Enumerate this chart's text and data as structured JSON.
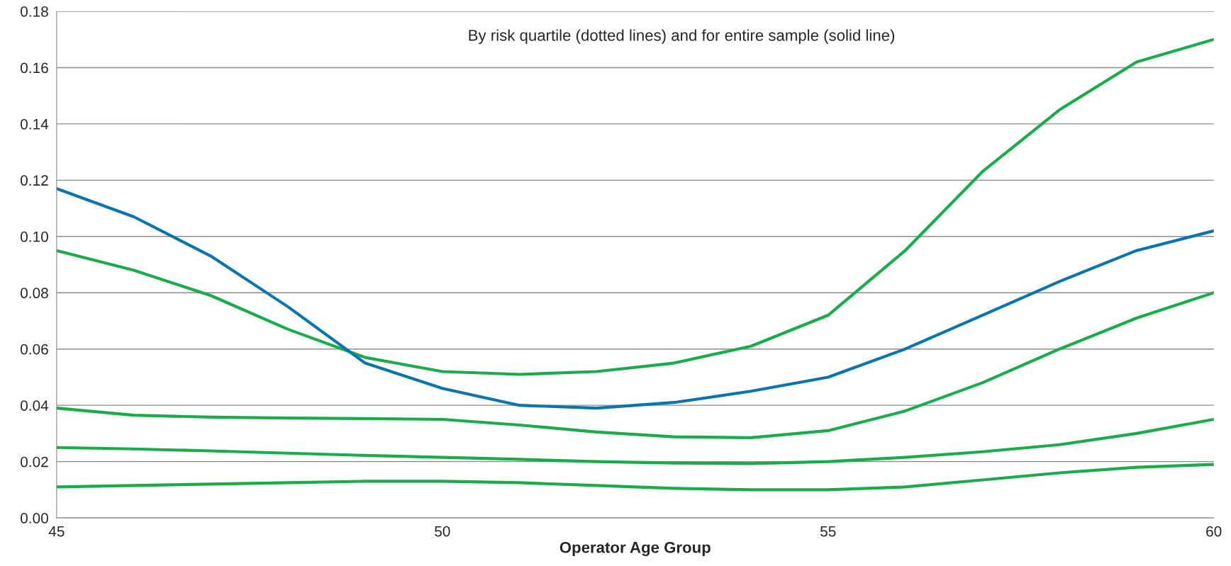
{
  "chart_data": {
    "type": "line",
    "xlabel": "Operator Age Group",
    "annotations": [
      "By risk quartile (dotted lines) and for entire sample (solid line)"
    ],
    "x": [
      45,
      46,
      47,
      48,
      49,
      50,
      51,
      52,
      53,
      54,
      55,
      56,
      57,
      58,
      59,
      60
    ],
    "series": [
      {
        "color": "#1aab4b",
        "values": [
          0.095,
          0.088,
          0.079,
          0.067,
          0.057,
          0.052,
          0.051,
          0.052,
          0.055,
          0.061,
          0.072,
          0.095,
          0.123,
          0.145,
          0.162,
          0.17
        ]
      },
      {
        "color": "#1aab4b",
        "values": [
          0.039,
          0.0365,
          0.0358,
          0.0355,
          0.0353,
          0.035,
          0.033,
          0.0305,
          0.0288,
          0.0285,
          0.031,
          0.038,
          0.048,
          0.06,
          0.071,
          0.08
        ]
      },
      {
        "color": "#1aab4b",
        "values": [
          0.025,
          0.0245,
          0.0238,
          0.023,
          0.0222,
          0.0215,
          0.0208,
          0.02,
          0.0195,
          0.0193,
          0.02,
          0.0215,
          0.0235,
          0.026,
          0.03,
          0.035
        ]
      },
      {
        "color": "#1aab4b",
        "values": [
          0.011,
          0.0115,
          0.012,
          0.0125,
          0.013,
          0.013,
          0.0125,
          0.0115,
          0.0105,
          0.01,
          0.01,
          0.011,
          0.0135,
          0.016,
          0.018,
          0.019
        ]
      },
      {
        "color": "#0a75ad",
        "values": [
          0.117,
          0.107,
          0.093,
          0.075,
          0.055,
          0.046,
          0.04,
          0.039,
          0.041,
          0.045,
          0.05,
          0.06,
          0.072,
          0.084,
          0.095,
          0.102
        ]
      }
    ],
    "xlim": [
      45,
      60
    ],
    "xticks": [
      45,
      50,
      55,
      60
    ],
    "ylim": [
      0,
      0.18
    ],
    "yticks": [
      {
        "value": 0,
        "label": "0.00"
      },
      {
        "value": 0.02,
        "label": "0.02"
      },
      {
        "value": 0.04,
        "label": "0.04"
      },
      {
        "value": 0.06,
        "label": "0.06"
      },
      {
        "value": 0.08,
        "label": "0.08"
      },
      {
        "value": 0.1,
        "label": "0.10"
      },
      {
        "value": 0.12,
        "label": "0.12"
      },
      {
        "value": 0.14,
        "label": "0.14"
      },
      {
        "value": 0.16,
        "label": "0.16"
      },
      {
        "value": 0.18,
        "label": "0.18"
      }
    ],
    "grid": "y",
    "marker": "none",
    "line_style": "solid"
  }
}
